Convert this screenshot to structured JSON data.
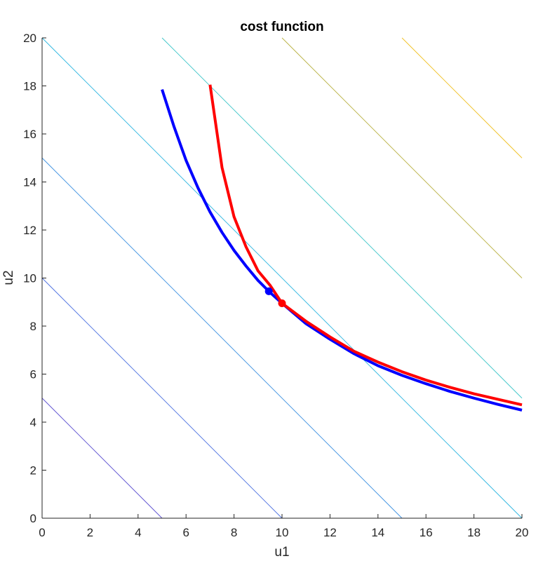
{
  "chart_data": {
    "type": "line",
    "title": "cost function",
    "xlabel": "u1",
    "ylabel": "u2",
    "xlim": [
      0,
      20
    ],
    "ylim": [
      0,
      20
    ],
    "xticks": [
      "0",
      "2",
      "4",
      "6",
      "8",
      "10",
      "12",
      "14",
      "16",
      "18",
      "20"
    ],
    "yticks": [
      "0",
      "2",
      "4",
      "6",
      "8",
      "10",
      "12",
      "14",
      "16",
      "18",
      "20"
    ],
    "grid": false,
    "legend": "none",
    "contours": [
      {
        "level": 5,
        "color": "#5b4fd0",
        "points": [
          [
            0,
            5
          ],
          [
            5,
            0
          ]
        ]
      },
      {
        "level": 10,
        "color": "#4a6fe0",
        "points": [
          [
            0,
            10
          ],
          [
            10,
            0
          ]
        ]
      },
      {
        "level": 15,
        "color": "#3a8fe0",
        "points": [
          [
            0,
            15
          ],
          [
            15,
            0
          ]
        ]
      },
      {
        "level": 20,
        "color": "#2bb5e0",
        "points": [
          [
            0,
            20
          ],
          [
            20,
            0
          ]
        ]
      },
      {
        "level": 25,
        "color": "#3cc5c8",
        "points": [
          [
            5,
            20
          ],
          [
            20,
            5
          ]
        ]
      },
      {
        "level": 30,
        "color": "#b8b040",
        "points": [
          [
            10,
            20
          ],
          [
            20,
            10
          ]
        ]
      },
      {
        "level": 35,
        "color": "#f0c020",
        "points": [
          [
            15,
            20
          ],
          [
            20,
            15
          ]
        ]
      }
    ],
    "series": [
      {
        "color": "#0000ff",
        "points": [
          [
            5,
            17.85
          ],
          [
            5.5,
            16.3
          ],
          [
            6,
            14.9
          ],
          [
            6.5,
            13.75
          ],
          [
            7,
            12.75
          ],
          [
            7.5,
            11.9
          ],
          [
            8,
            11.15
          ],
          [
            8.5,
            10.5
          ],
          [
            9,
            9.9
          ],
          [
            9.5,
            9.4
          ],
          [
            10,
            8.95
          ],
          [
            11,
            8.1
          ],
          [
            12,
            7.45
          ],
          [
            13,
            6.85
          ],
          [
            14,
            6.35
          ],
          [
            15,
            5.95
          ],
          [
            16,
            5.6
          ],
          [
            17,
            5.28
          ],
          [
            18,
            5.0
          ],
          [
            19,
            4.74
          ],
          [
            20,
            4.5
          ]
        ]
      },
      {
        "color": "#ff0000",
        "points": [
          [
            7,
            18.05
          ],
          [
            7.5,
            14.6
          ],
          [
            8,
            12.55
          ],
          [
            8.5,
            11.3
          ],
          [
            9,
            10.3
          ],
          [
            9.5,
            9.7
          ],
          [
            10,
            8.95
          ],
          [
            11,
            8.2
          ],
          [
            12,
            7.55
          ],
          [
            13,
            6.95
          ],
          [
            14,
            6.5
          ],
          [
            15,
            6.1
          ],
          [
            16,
            5.75
          ],
          [
            17,
            5.45
          ],
          [
            18,
            5.18
          ],
          [
            19,
            4.95
          ],
          [
            20,
            4.72
          ]
        ]
      }
    ],
    "markers": [
      {
        "x": 9.45,
        "y": 9.45,
        "color": "#0000ff"
      },
      {
        "x": 10,
        "y": 8.95,
        "color": "#ff0000"
      }
    ]
  }
}
